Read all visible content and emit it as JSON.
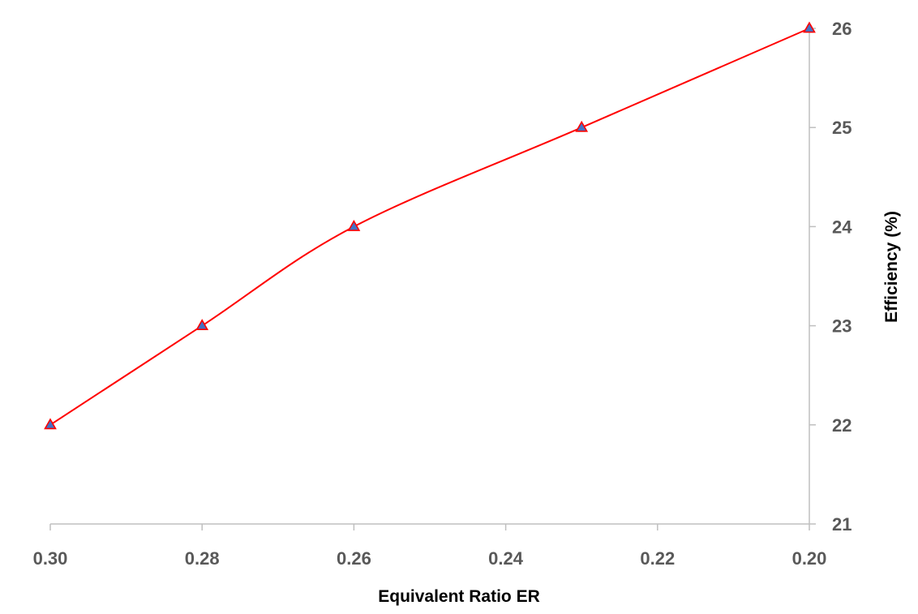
{
  "chart_data": {
    "type": "line",
    "title": "",
    "xlabel": "Equivalent Ratio ER",
    "ylabel": "Efficiency (%)",
    "x_reversed": true,
    "xlim": [
      0.3,
      0.2
    ],
    "ylim": [
      21,
      26
    ],
    "x_ticks": [
      0.3,
      0.28,
      0.26,
      0.24,
      0.22,
      0.2
    ],
    "x_tick_labels": [
      "0.30",
      "0.28",
      "0.26",
      "0.24",
      "0.22",
      "0.20"
    ],
    "y_ticks": [
      21,
      22,
      23,
      24,
      25,
      26
    ],
    "y_tick_labels": [
      "21",
      "22",
      "23",
      "24",
      "25",
      "26"
    ],
    "y_axis_side": "right",
    "grid": false,
    "legend": "none",
    "smooth": true,
    "series": [
      {
        "x": [
          0.3,
          0.28,
          0.26,
          0.23,
          0.2
        ],
        "y": [
          22,
          23,
          24,
          25,
          26
        ],
        "line_color": "#ff0000",
        "marker": "triangle",
        "marker_fill": "#4472c4",
        "marker_edge": "#ff0000"
      }
    ],
    "colors": {
      "axis": "#bfbfbf",
      "tick_text": "#595959",
      "title_text": "#000000"
    }
  }
}
